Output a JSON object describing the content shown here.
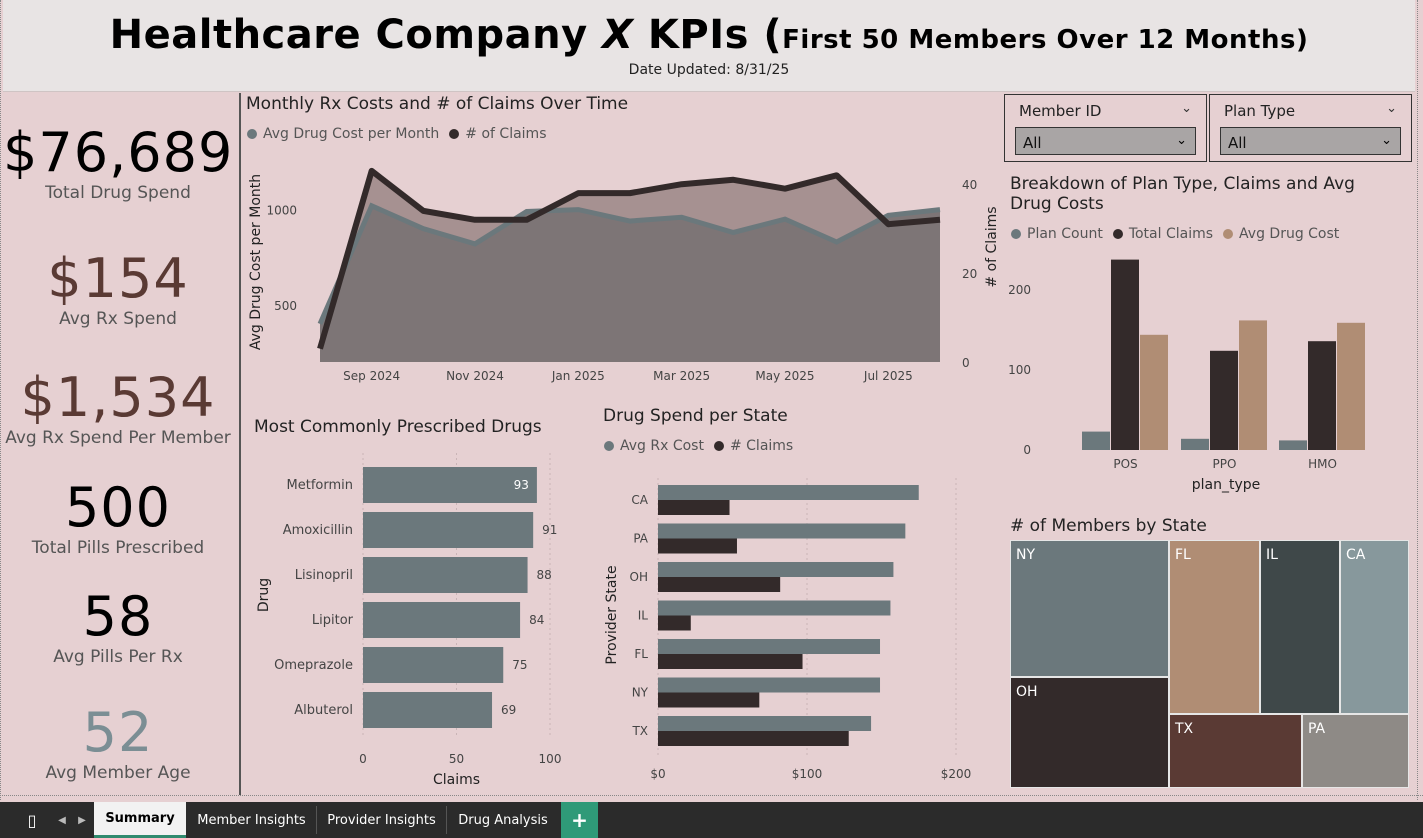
{
  "header": {
    "title_main": "Healthcare Company ",
    "title_x": "X",
    "title_kpis": " KPIs (",
    "title_sub": "First 50 Members Over 12 Months)",
    "date_updated": "Date Updated: 8/31/25"
  },
  "kpis": [
    {
      "value": "$76,689",
      "label": "Total Drug Spend",
      "color": "#000000"
    },
    {
      "value": "$154",
      "label": "Avg Rx Spend",
      "color": "#5a3a34"
    },
    {
      "value": "$1,534",
      "label": "Avg Rx Spend Per Member",
      "color": "#5a3a34"
    },
    {
      "value": "500",
      "label": "Total Pills Prescribed",
      "color": "#000000"
    },
    {
      "value": "58",
      "label": "Avg Pills Per Rx",
      "color": "#000000"
    },
    {
      "value": "52",
      "label": "Avg Member Age",
      "color": "#7b8e94"
    }
  ],
  "slicers": {
    "member_id": {
      "title": "Member ID",
      "value": "All"
    },
    "plan_type": {
      "title": "Plan Type",
      "value": "All"
    }
  },
  "colors": {
    "slate": "#6b787c",
    "dark": "#332a2a",
    "tan": "#b08d74",
    "bg": "#e6d0d2"
  },
  "chart_data": [
    {
      "type": "area",
      "title": "Monthly Rx Costs and # of Claims Over Time",
      "ylabel": "Avg Drug Cost per Month",
      "y2label": "# of Claims",
      "x_ticks": [
        "Sep 2024",
        "Nov 2024",
        "Jan 2025",
        "Mar 2025",
        "May 2025",
        "Jul 2025"
      ],
      "ylim": [
        200,
        1250
      ],
      "y_ticks": [
        500,
        1000
      ],
      "y2lim": [
        0,
        45
      ],
      "y2_ticks": [
        0,
        20,
        40
      ],
      "x": [
        "Aug 2024",
        "Sep 2024",
        "Oct 2024",
        "Nov 2024",
        "Dec 2024",
        "Jan 2025",
        "Feb 2025",
        "Mar 2025",
        "Apr 2025",
        "May 2025",
        "Jun 2025",
        "Jul 2025",
        "Aug 2025"
      ],
      "series": [
        {
          "name": "Avg Drug Cost per Month",
          "axis": "left",
          "values": [
            400,
            1020,
            900,
            820,
            990,
            1000,
            940,
            960,
            880,
            950,
            830,
            970,
            1000
          ]
        },
        {
          "name": "# of Claims",
          "axis": "right",
          "values": [
            3,
            43,
            34,
            32,
            32,
            38,
            38,
            40,
            41,
            39,
            42,
            31,
            32
          ]
        }
      ]
    },
    {
      "type": "bar",
      "title": "Most Commonly Prescribed Drugs",
      "orientation": "horizontal",
      "xlabel": "Claims",
      "ylabel": "Drug",
      "xlim": [
        0,
        100
      ],
      "x_ticks": [
        0,
        50,
        100
      ],
      "categories": [
        "Metformin",
        "Amoxicillin",
        "Lisinopril",
        "Lipitor",
        "Omeprazole",
        "Albuterol"
      ],
      "values": [
        93,
        91,
        88,
        84,
        75,
        69
      ]
    },
    {
      "type": "bar",
      "title": "Drug Spend per State",
      "orientation": "horizontal",
      "ylabel": "Provider State",
      "xlim": [
        0,
        200
      ],
      "x_ticks": [
        "$0",
        "$100",
        "$200"
      ],
      "categories": [
        "CA",
        "PA",
        "OH",
        "IL",
        "FL",
        "NY",
        "TX"
      ],
      "series": [
        {
          "name": "Avg Rx Cost",
          "values": [
            175,
            166,
            158,
            156,
            149,
            149,
            143
          ]
        },
        {
          "name": "# Claims",
          "values": [
            48,
            53,
            82,
            22,
            97,
            68,
            128
          ]
        }
      ]
    },
    {
      "type": "bar",
      "title": "Breakdown of Plan Type, Claims and Avg Drug Costs",
      "xlabel": "plan_type",
      "ylim": [
        0,
        250
      ],
      "y_ticks": [
        0,
        100,
        200
      ],
      "categories": [
        "POS",
        "PPO",
        "HMO"
      ],
      "series": [
        {
          "name": "Plan Count",
          "values": [
            23,
            14,
            12
          ]
        },
        {
          "name": "Total Claims",
          "values": [
            238,
            124,
            136
          ]
        },
        {
          "name": "Avg Drug Cost",
          "values": [
            144,
            162,
            159
          ]
        }
      ]
    },
    {
      "type": "heatmap",
      "title": "# of Members by State",
      "categories": [
        "NY",
        "OH",
        "FL",
        "IL",
        "CA",
        "TX",
        "PA"
      ],
      "values": [
        11,
        8,
        8,
        6,
        6,
        6,
        5
      ]
    }
  ],
  "tabs": [
    {
      "label": "Summary"
    },
    {
      "label": "Member Insights"
    },
    {
      "label": "Provider Insights"
    },
    {
      "label": "Drug Analysis"
    },
    {
      "label": "+"
    }
  ]
}
